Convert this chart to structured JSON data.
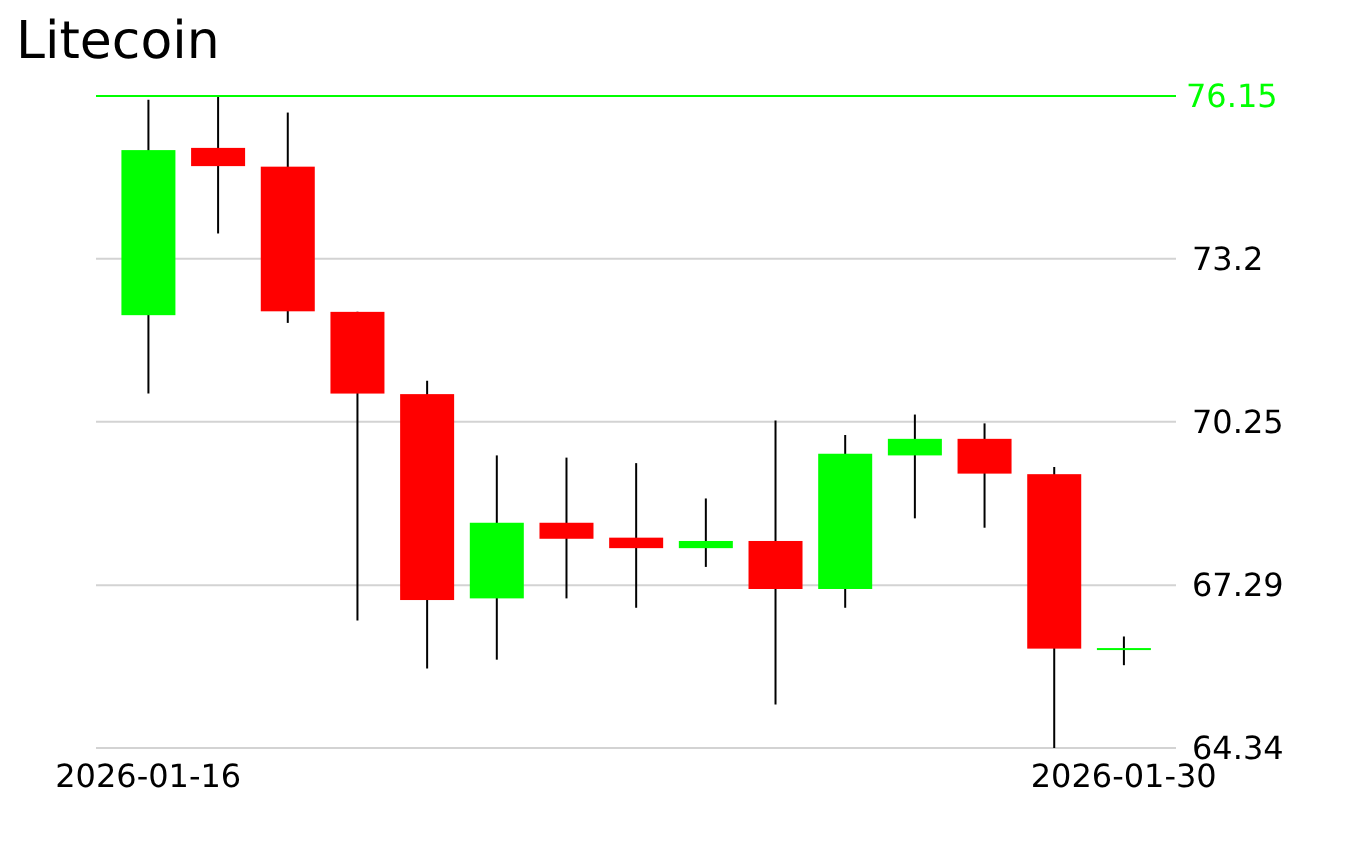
{
  "chart_data": {
    "type": "candlestick",
    "title": "Litecoin",
    "x": [
      "2026-01-16",
      "2026-01-17",
      "2026-01-18",
      "2026-01-19",
      "2026-01-20",
      "2026-01-21",
      "2026-01-22",
      "2026-01-23",
      "2026-01-24",
      "2026-01-25",
      "2026-01-26",
      "2026-01-27",
      "2026-01-28",
      "2026-01-29",
      "2026-01-30"
    ],
    "ohlc": [
      [
        72.18,
        76.08,
        70.76,
        75.17
      ],
      [
        75.21,
        76.15,
        73.66,
        74.88
      ],
      [
        74.87,
        75.85,
        72.04,
        72.25
      ],
      [
        72.24,
        72.24,
        66.65,
        70.76
      ],
      [
        70.75,
        70.99,
        65.78,
        67.02
      ],
      [
        67.05,
        69.64,
        65.94,
        68.42
      ],
      [
        68.42,
        69.6,
        67.05,
        68.13
      ],
      [
        68.15,
        69.5,
        66.88,
        67.96
      ],
      [
        67.96,
        68.86,
        67.62,
        68.09
      ],
      [
        68.09,
        70.27,
        65.13,
        67.22
      ],
      [
        67.22,
        70.01,
        66.88,
        69.67
      ],
      [
        69.64,
        70.38,
        68.5,
        69.94
      ],
      [
        69.94,
        70.22,
        68.33,
        69.31
      ],
      [
        69.3,
        69.43,
        64.34,
        66.14
      ],
      [
        66.14,
        66.36,
        65.84,
        66.15
      ]
    ],
    "colors": [
      "#00ff00",
      "#ff0000",
      "#ff0000",
      "#ff0000",
      "#ff0000",
      "#00ff00",
      "#ff0000",
      "#ff0000",
      "#00ff00",
      "#ff0000",
      "#00ff00",
      "#00ff00",
      "#ff0000",
      "#ff0000",
      "#00ff00"
    ],
    "xlim": [
      "2026-01-15T06:00",
      "2026-01-30T18:00"
    ],
    "xticks": [
      "2026-01-16",
      "2026-01-30"
    ],
    "ylim": [
      64.34,
      76.15
    ],
    "yticks": [
      64.34,
      67.29,
      70.25,
      73.2
    ],
    "ref_lines": [
      {
        "axis": "y",
        "value": 76.15,
        "label": "76.15",
        "color": "#00ff00"
      }
    ],
    "grid": "y"
  }
}
